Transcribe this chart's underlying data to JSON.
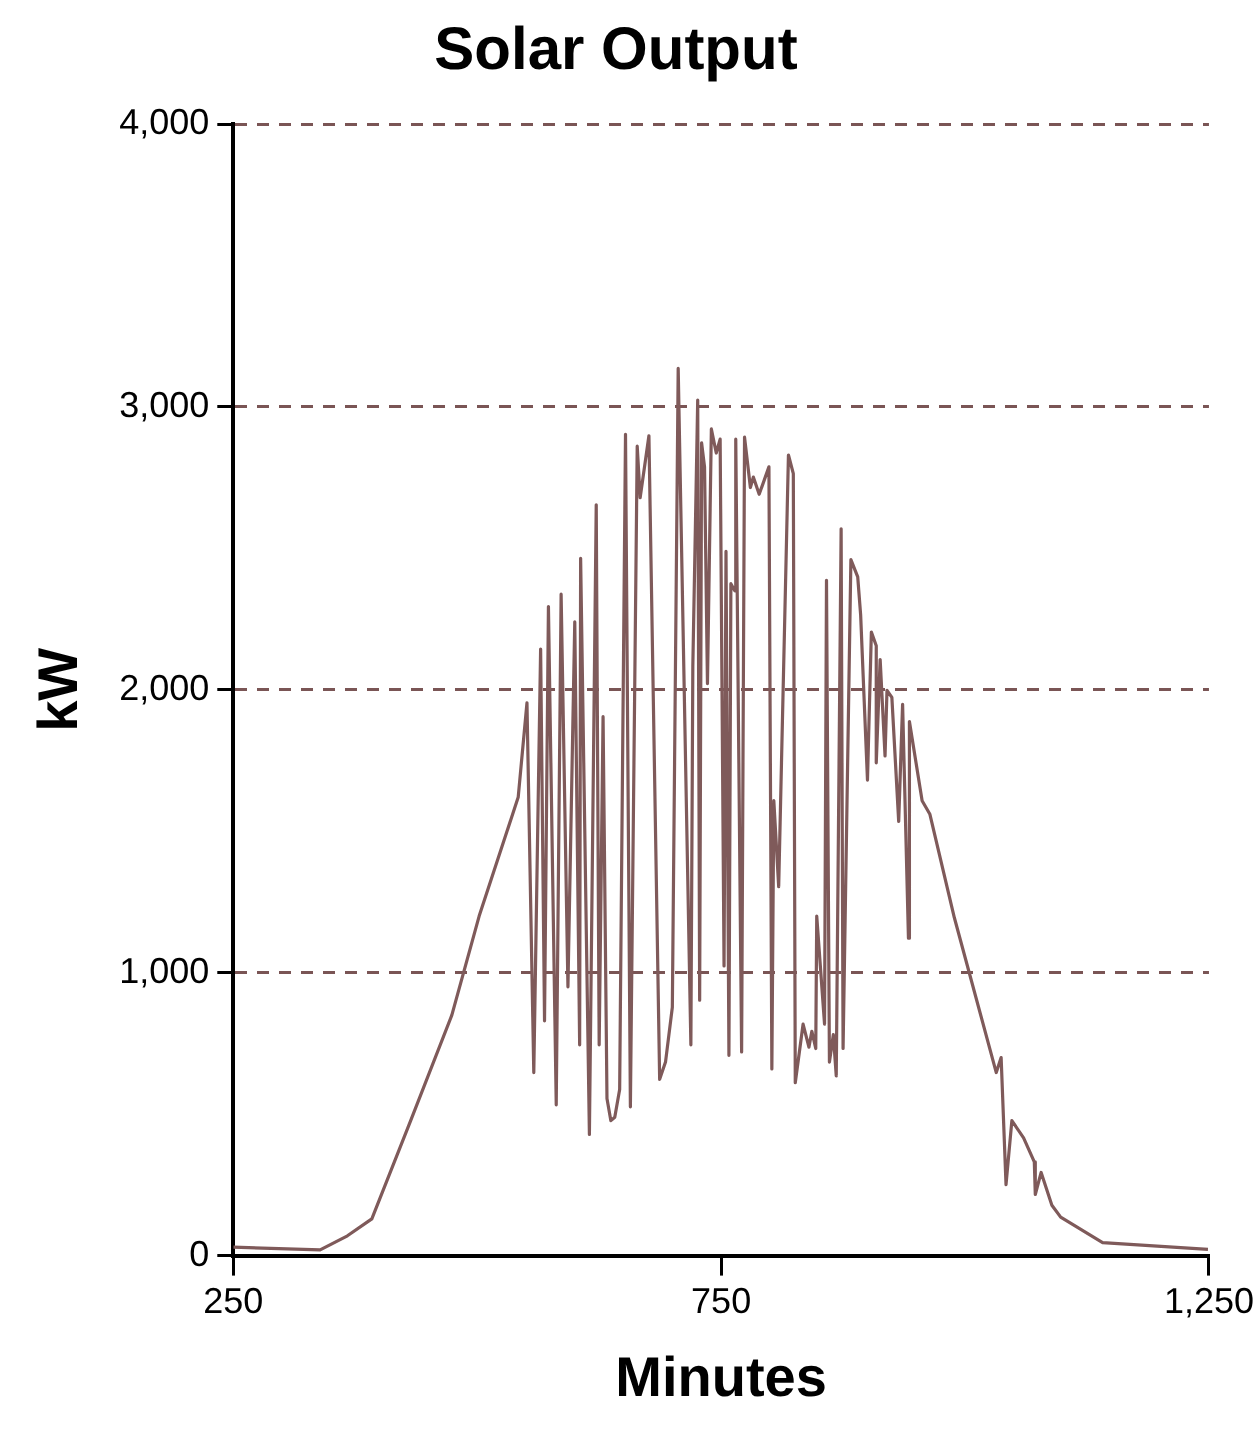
{
  "chart_data": {
    "type": "line",
    "title": "Solar Output",
    "xlabel": "Minutes",
    "ylabel": "kW",
    "xlim": [
      250,
      1250
    ],
    "xticks": [
      250,
      750,
      {
        "value": 1250,
        "label": "1,250"
      }
    ],
    "ylim": [
      0,
      4000
    ],
    "yticks": [
      0,
      {
        "value": 1000,
        "label": "1,000"
      },
      {
        "value": 2000,
        "label": "2,000"
      },
      {
        "value": 3000,
        "label": "3,000"
      },
      {
        "value": 4000,
        "label": "4,000"
      }
    ],
    "grid": "y",
    "legend": false,
    "marker": "none",
    "line_style": "solid",
    "series": [
      {
        "color": "#7f5a5a",
        "x": [
          250,
          339,
          367,
          392,
          431,
          474,
          502,
          542,
          551,
          558,
          565,
          569,
          573,
          581,
          586,
          593,
          600,
          605,
          606,
          615,
          622,
          625,
          629,
          633,
          637,
          641,
          646,
          652,
          657,
          664,
          667,
          676,
          687,
          693,
          700,
          706,
          719,
          721,
          726,
          728,
          730,
          733,
          736,
          740,
          745,
          749,
          753,
          755,
          758,
          760,
          764,
          765,
          771,
          774,
          780,
          783,
          789,
          799,
          802,
          804,
          809,
          819,
          824,
          826,
          834,
          840,
          843,
          847,
          848,
          856,
          858,
          861,
          865,
          868,
          873,
          875,
          883,
          890,
          893,
          900,
          904,
          909,
          909,
          913,
          918,
          920,
          925,
          932,
          936,
          942,
          943,
          956,
          964,
          989,
          1032,
          1037,
          1042,
          1048,
          1060,
          1071,
          1072,
          1078,
          1089,
          1098,
          1141,
          1249
        ],
        "values": [
          30,
          20,
          70,
          130,
          470,
          850,
          1200,
          1620,
          1954,
          647,
          2144,
          830,
          2294,
          533,
          2338,
          950,
          2240,
          745,
          2465,
          428,
          2654,
          745,
          1905,
          555,
          477,
          489,
          587,
          2903,
          526,
          2861,
          2679,
          2898,
          623,
          684,
          878,
          3136,
          745,
          2083,
          3024,
          903,
          2873,
          2788,
          2022,
          2922,
          2837,
          2886,
          1024,
          2489,
          708,
          2375,
          2350,
          2886,
          720,
          2893,
          2715,
          2752,
          2691,
          2788,
          660,
          1608,
          1304,
          2830,
          2764,
          611,
          818,
          737,
          793,
          732,
          1200,
          818,
          2387,
          684,
          781,
          635,
          2569,
          732,
          2460,
          2399,
          2265,
          1681,
          2204,
          2156,
          1742,
          2107,
          1766,
          1998,
          1973,
          1535,
          1949,
          1122,
          1888,
          1608,
          1560,
          1195,
          647,
          700,
          251,
          477,
          416,
          331,
          216,
          294,
          178,
          136,
          46,
          22
        ]
      }
    ]
  }
}
